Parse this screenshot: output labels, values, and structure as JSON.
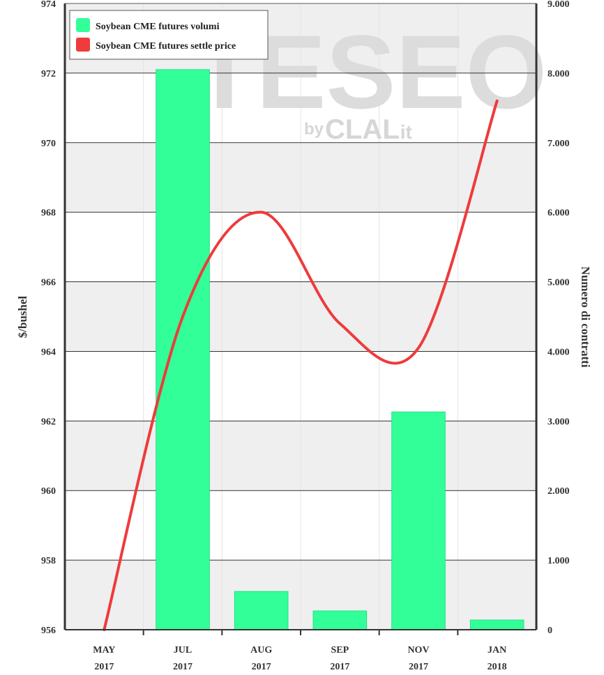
{
  "watermark": {
    "main": "TESEO",
    "by": "by",
    "sub": "CLAL",
    "suffix": ".it"
  },
  "chart_data": {
    "type": "bar+line",
    "categories": [
      {
        "month": "MAY",
        "year": "2017"
      },
      {
        "month": "JUL",
        "year": "2017"
      },
      {
        "month": "AUG",
        "year": "2017"
      },
      {
        "month": "SEP",
        "year": "2017"
      },
      {
        "month": "NOV",
        "year": "2017"
      },
      {
        "month": "JAN",
        "year": "2018"
      }
    ],
    "series": [
      {
        "name": "Soybean CME futures volumi",
        "type": "bar",
        "axis": "right",
        "color": "#33ff99",
        "values": [
          0,
          8050,
          550,
          270,
          3130,
          140
        ]
      },
      {
        "name": "Soybean CME futures settle price",
        "type": "line",
        "axis": "left",
        "color": "#ee3b3b",
        "values": [
          956.0,
          965.0,
          968.0,
          964.8,
          964.1,
          971.2
        ]
      }
    ],
    "ylabel_left": "$/bushel",
    "ylabel_right": "Numero di contratti",
    "y_left": {
      "min": 956,
      "max": 974,
      "ticks": [
        "956",
        "958",
        "960",
        "962",
        "964",
        "966",
        "968",
        "970",
        "972",
        "974"
      ]
    },
    "y_right": {
      "min": 0,
      "max": 9000,
      "ticks": [
        "0",
        "1.000",
        "2.000",
        "3.000",
        "4.000",
        "5.000",
        "6.000",
        "7.000",
        "8.000",
        "9.000"
      ]
    },
    "grid": true,
    "legend_position": "top-left"
  }
}
